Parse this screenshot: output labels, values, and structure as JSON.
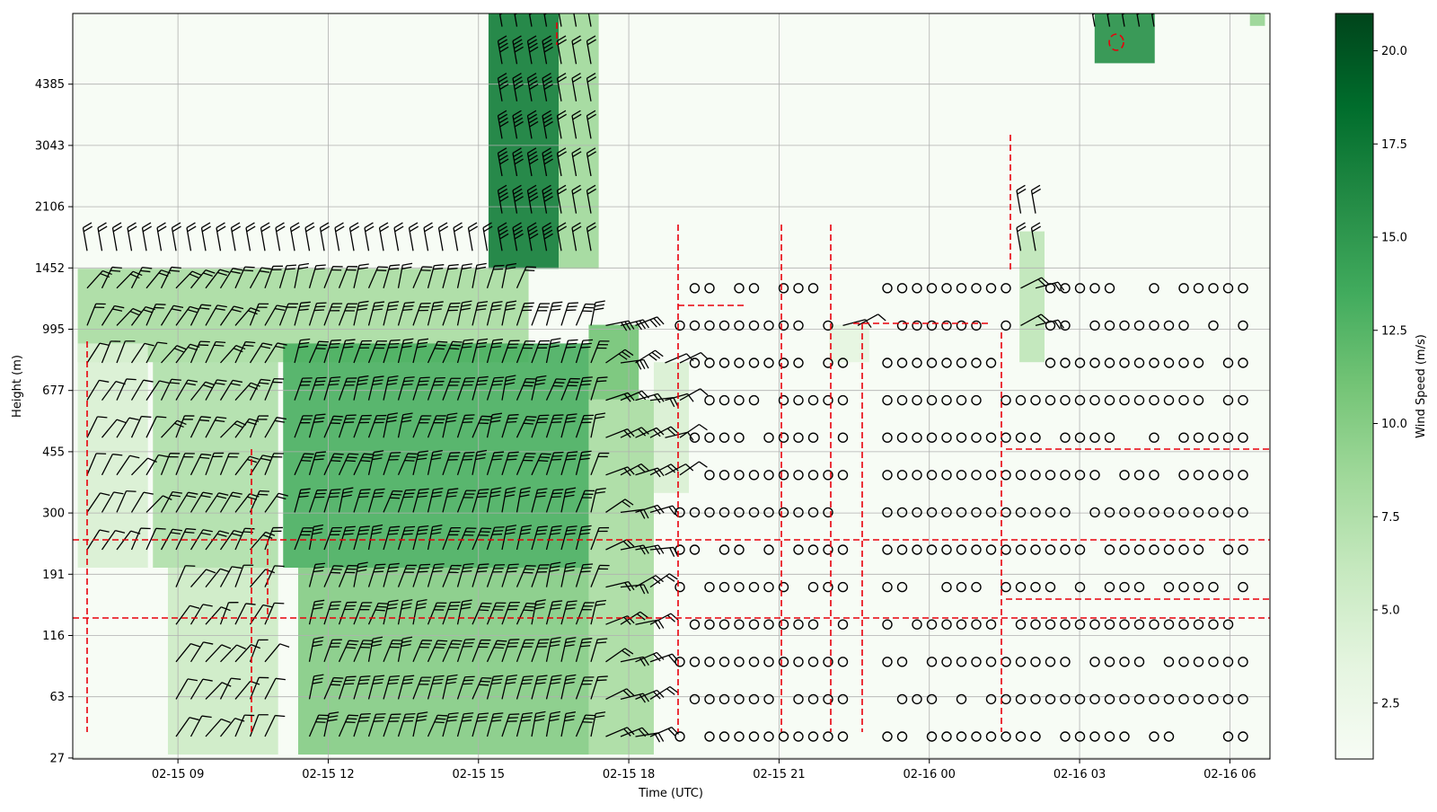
{
  "chart_data": {
    "type": "heatmap",
    "title": "",
    "xlabel": "Time (UTC)",
    "ylabel": "Height (m)",
    "colorbar_label": "Wind Speed (m/s)",
    "colormap": "Greens",
    "color_range": [
      1.0,
      21.0
    ],
    "colorbar_ticks": [
      "2.5",
      "5.0",
      "7.5",
      "10.0",
      "12.5",
      "15.0",
      "17.5",
      "20.0"
    ],
    "colorbar_tick_values": [
      2.5,
      5.0,
      7.5,
      10.0,
      12.5,
      15.0,
      17.5,
      20.0
    ],
    "x_tick_labels": [
      "02-15 09",
      "02-15 12",
      "02-15 15",
      "02-15 18",
      "02-15 21",
      "02-16 00",
      "02-16 03",
      "02-16 06"
    ],
    "x_tick_hours": [
      9,
      12,
      15,
      18,
      21,
      24,
      27,
      30
    ],
    "xlim_hours": [
      6.9,
      30.8
    ],
    "y_tick_labels": [
      "27",
      "63",
      "116",
      "191",
      "300",
      "455",
      "677",
      "995",
      "1452",
      "2106",
      "3043",
      "4385"
    ],
    "y_tick_values": [
      27,
      63,
      116,
      191,
      300,
      455,
      677,
      995,
      1452,
      2106,
      3043,
      4385
    ],
    "grid": true,
    "overlays": {
      "wind_barbs": true,
      "calm_wind_circles": true,
      "red_dashed_contours": true
    },
    "heatmap_blocks": [
      {
        "hour_start": 7.0,
        "hour_end": 16.0,
        "level_start": 10.5,
        "level_end": 13.0,
        "value": 8.0
      },
      {
        "hour_start": 15.2,
        "hour_end": 16.6,
        "level_start": 13.0,
        "level_end": 20.0,
        "value": 17.0
      },
      {
        "hour_start": 16.6,
        "hour_end": 17.4,
        "level_start": 13.0,
        "level_end": 20.0,
        "value": 8.5
      },
      {
        "hour_start": 11.1,
        "hour_end": 17.2,
        "level_start": 5.0,
        "level_end": 11.0,
        "value": 13.0
      },
      {
        "hour_start": 8.5,
        "hour_end": 11.0,
        "level_start": 5.0,
        "level_end": 11.0,
        "value": 7.5
      },
      {
        "hour_start": 7.0,
        "hour_end": 8.4,
        "level_start": 5.0,
        "level_end": 11.0,
        "value": 4.5
      },
      {
        "hour_start": 11.4,
        "hour_end": 17.2,
        "level_start": 0.0,
        "level_end": 5.0,
        "value": 10.0
      },
      {
        "hour_start": 8.8,
        "hour_end": 11.0,
        "level_start": 0.0,
        "level_end": 5.0,
        "value": 5.5
      },
      {
        "hour_start": 17.2,
        "hour_end": 18.5,
        "level_start": 0.0,
        "level_end": 9.5,
        "value": 8.0
      },
      {
        "hour_start": 17.2,
        "hour_end": 18.2,
        "level_start": 9.5,
        "level_end": 11.5,
        "value": 11.0
      },
      {
        "hour_start": 18.5,
        "hour_end": 19.2,
        "level_start": 7.0,
        "level_end": 10.5,
        "value": 4.5
      },
      {
        "hour_start": 22.0,
        "hour_end": 22.8,
        "level_start": 10.5,
        "level_end": 11.5,
        "value": 3.5
      },
      {
        "hour_start": 25.8,
        "hour_end": 26.3,
        "level_start": 10.5,
        "level_end": 14.0,
        "value": 6.5
      },
      {
        "hour_start": 27.3,
        "hour_end": 28.5,
        "level_start": 18.5,
        "level_end": 20.0,
        "value": 15.5
      },
      {
        "hour_start": 30.4,
        "hour_end": 30.7,
        "level_start": 19.5,
        "level_end": 20.0,
        "value": 9.0
      }
    ],
    "background_value": 1.0
  }
}
